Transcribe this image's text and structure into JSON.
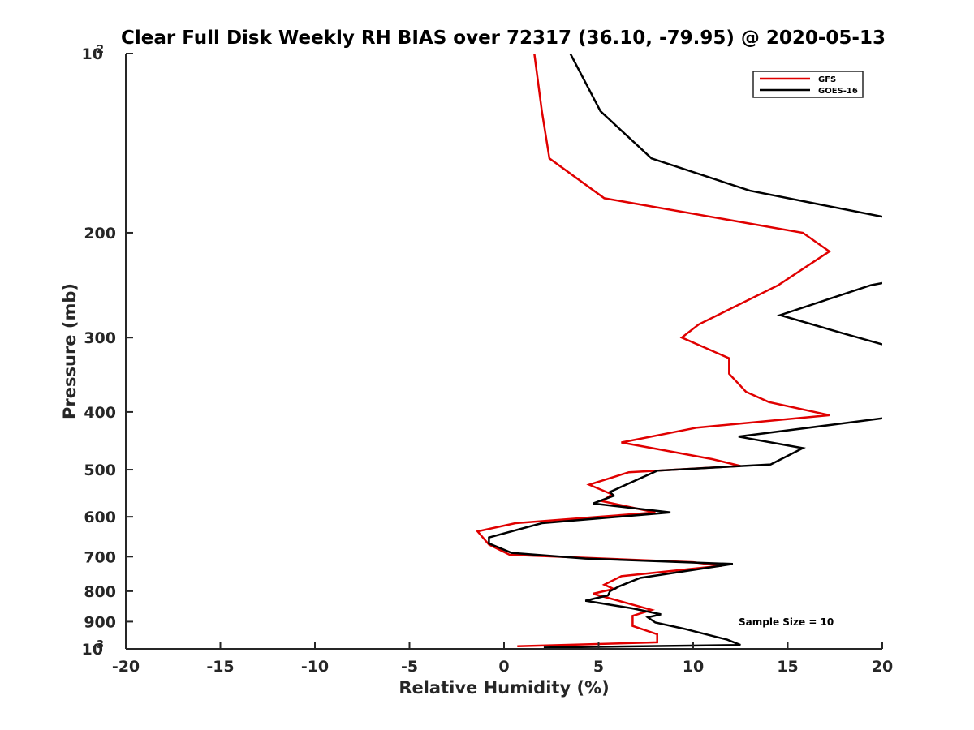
{
  "chart_data": {
    "type": "line",
    "title": "Clear Full Disk Weekly RH BIAS over 72317 (36.10, -79.95) @ 2020-05-13",
    "xlabel": "Relative Humidity (%)",
    "ylabel": "Pressure (mb)",
    "xlim": [
      -20,
      20
    ],
    "ylim": [
      100,
      1000
    ],
    "y_scale": "log",
    "y_reversed": true,
    "x_ticks": [
      "-20",
      "-15",
      "-10",
      "-5",
      "0",
      "5",
      "10",
      "15",
      "20"
    ],
    "y_ticks": [
      {
        "value": 100,
        "label": "10",
        "sup": "2"
      },
      {
        "value": 200,
        "label": "200",
        "sup": ""
      },
      {
        "value": 300,
        "label": "300",
        "sup": ""
      },
      {
        "value": 400,
        "label": "400",
        "sup": ""
      },
      {
        "value": 500,
        "label": "500",
        "sup": ""
      },
      {
        "value": 600,
        "label": "600",
        "sup": ""
      },
      {
        "value": 700,
        "label": "700",
        "sup": ""
      },
      {
        "value": 800,
        "label": "800",
        "sup": ""
      },
      {
        "value": 900,
        "label": "900",
        "sup": ""
      },
      {
        "value": 1000,
        "label": "10",
        "sup": "3"
      }
    ],
    "grid": false,
    "legend_position": "top-right",
    "annotation": "Sample Size = 10",
    "series": [
      {
        "name": "GFS",
        "color": "#e00000",
        "points": [
          [
            1.6,
            100
          ],
          [
            2.0,
            125
          ],
          [
            2.4,
            150
          ],
          [
            5.3,
            175
          ],
          [
            15.8,
            200
          ],
          [
            17.2,
            215
          ],
          [
            14.5,
            245
          ],
          [
            10.3,
            285
          ],
          [
            9.4,
            300
          ],
          [
            11.9,
            325
          ],
          [
            11.9,
            345
          ],
          [
            12.8,
            370
          ],
          [
            14.0,
            385
          ],
          [
            17.2,
            405
          ],
          [
            10.2,
            425
          ],
          [
            6.2,
            450
          ],
          [
            11.0,
            480
          ],
          [
            12.5,
            493
          ],
          [
            6.6,
            505
          ],
          [
            4.5,
            530
          ],
          [
            5.7,
            550
          ],
          [
            5.2,
            565
          ],
          [
            8.0,
            590
          ],
          [
            0.6,
            615
          ],
          [
            -1.4,
            635
          ],
          [
            -0.8,
            668
          ],
          [
            0.3,
            695
          ],
          [
            10.0,
            715
          ],
          [
            11.5,
            725
          ],
          [
            6.2,
            755
          ],
          [
            5.3,
            780
          ],
          [
            5.8,
            793
          ],
          [
            4.7,
            808
          ],
          [
            7.8,
            860
          ],
          [
            6.8,
            880
          ],
          [
            6.8,
            915
          ],
          [
            8.1,
            945
          ],
          [
            8.1,
            975
          ],
          [
            0.7,
            990
          ]
        ]
      },
      {
        "name": "GOES-16",
        "color": "#000000",
        "points": [
          [
            3.5,
            100
          ],
          [
            5.1,
            125
          ],
          [
            7.8,
            150
          ],
          [
            13.0,
            170
          ],
          [
            20.0,
            188
          ],
          [
            null,
            null
          ],
          [
            20.0,
            243
          ],
          [
            19.4,
            245
          ],
          [
            17.4,
            257
          ],
          [
            14.6,
            275
          ],
          [
            17.9,
            295
          ],
          [
            20.0,
            308
          ],
          [
            null,
            null
          ],
          [
            20.0,
            410
          ],
          [
            17.4,
            420
          ],
          [
            12.4,
            440
          ],
          [
            15.8,
            460
          ],
          [
            14.1,
            490
          ],
          [
            8.1,
            502
          ],
          [
            5.6,
            545
          ],
          [
            5.8,
            553
          ],
          [
            4.7,
            570
          ],
          [
            8.8,
            590
          ],
          [
            2.0,
            615
          ],
          [
            -0.8,
            650
          ],
          [
            -0.8,
            665
          ],
          [
            0.4,
            690
          ],
          [
            4.3,
            705
          ],
          [
            12.1,
            720
          ],
          [
            7.2,
            760
          ],
          [
            6.1,
            785
          ],
          [
            5.6,
            800
          ],
          [
            5.5,
            813
          ],
          [
            4.3,
            830
          ],
          [
            6.8,
            855
          ],
          [
            8.3,
            875
          ],
          [
            7.6,
            885
          ],
          [
            8.0,
            903
          ],
          [
            9.5,
            925
          ],
          [
            11.8,
            965
          ],
          [
            12.5,
            985
          ],
          [
            2.1,
            995
          ]
        ]
      }
    ]
  }
}
